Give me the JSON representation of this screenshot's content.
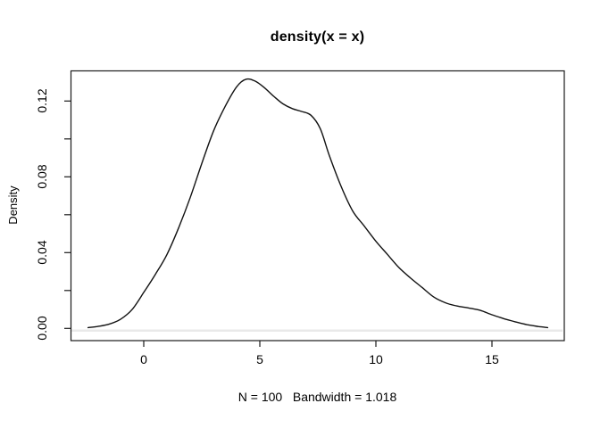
{
  "window": {
    "background": "#ffffff"
  },
  "title": "density(x = x)",
  "subtitle": "N = 100   Bandwidth = 1.018",
  "ylabel": "Density",
  "axes": {
    "x": {
      "ticks": [
        0,
        5,
        10,
        15
      ],
      "labels": [
        "0",
        "5",
        "10",
        "15"
      ]
    },
    "y": {
      "minor_ticks": [
        0,
        0.02,
        0.04,
        0.06,
        0.08,
        0.1,
        0.12
      ],
      "ticks": [
        0,
        0.04,
        0.08,
        0.12
      ],
      "labels": [
        "0.00",
        "0.04",
        "0.08",
        "0.12"
      ]
    }
  },
  "colors": {
    "curve": "#111111",
    "axis": "#1a1a1a",
    "zero_line": "#e9e9e9",
    "text": "#000000"
  },
  "chart_data": {
    "type": "line",
    "title": "density(x = x)",
    "xlabel": "N = 100   Bandwidth = 1.018",
    "ylabel": "Density",
    "n": 100,
    "bandwidth": 1.018,
    "xlim": [
      -2.6,
      17.6
    ],
    "ylim": [
      0,
      0.136
    ],
    "x_tick_values": [
      0,
      5,
      10,
      15
    ],
    "y_tick_values_labeled": [
      0,
      0.04,
      0.08,
      0.12
    ],
    "y_tick_values_all": [
      0,
      0.02,
      0.04,
      0.06,
      0.08,
      0.1,
      0.12
    ],
    "grid": false,
    "legend": "none",
    "zero_baseline": true,
    "series": [
      {
        "name": "density",
        "x": [
          -2.4,
          -2.0,
          -1.5,
          -1.0,
          -0.5,
          0.0,
          0.5,
          1.0,
          1.5,
          2.0,
          2.5,
          3.0,
          3.5,
          4.0,
          4.4,
          4.8,
          5.2,
          5.6,
          6.0,
          6.4,
          6.8,
          7.2,
          7.6,
          8.0,
          8.5,
          9.0,
          9.5,
          10.0,
          10.5,
          11.0,
          11.5,
          12.0,
          12.5,
          13.0,
          13.5,
          14.0,
          14.5,
          15.0,
          15.5,
          16.0,
          16.5,
          17.0,
          17.4
        ],
        "y": [
          0.0004,
          0.001,
          0.0022,
          0.0048,
          0.01,
          0.019,
          0.0285,
          0.039,
          0.053,
          0.069,
          0.087,
          0.104,
          0.117,
          0.1275,
          0.1315,
          0.1305,
          0.127,
          0.1225,
          0.1185,
          0.116,
          0.1145,
          0.1125,
          0.1055,
          0.091,
          0.075,
          0.062,
          0.054,
          0.046,
          0.039,
          0.032,
          0.0265,
          0.0215,
          0.0165,
          0.0135,
          0.0118,
          0.0108,
          0.0095,
          0.0072,
          0.0052,
          0.0035,
          0.002,
          0.001,
          0.0004
        ]
      }
    ]
  }
}
